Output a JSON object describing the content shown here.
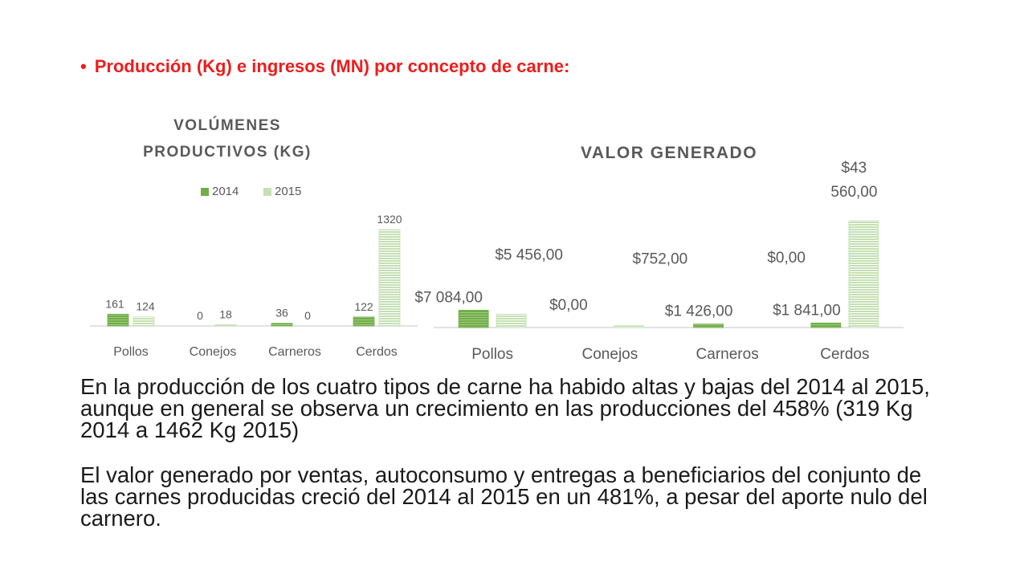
{
  "heading": "Producción (Kg) e ingresos (MN) por concepto de carne:",
  "paragraphs": [
    "En la producción de los cuatro tipos de carne ha habido altas y bajas del 2014 al 2015, aunque en general se observa un crecimiento en las producciones del 458% (319 Kg 2014 a 1462 Kg 2015)",
    "El valor generado por ventas, autoconsumo y entregas a beneficiarios del conjunto de las carnes producidas creció del 2014 al 2015 en un 481%, a pesar del aporte nulo del carnero."
  ],
  "colors": {
    "heading": "#ee1c1c",
    "series_2014": "#70ad47",
    "series_2015": "#c5e0b4",
    "chart_title": "#595959",
    "axis_text": "#595959"
  },
  "chart_data": [
    {
      "type": "bar",
      "title_lines": [
        "VOLÚMENES",
        "PRODUCTIVOS (KG)"
      ],
      "categories": [
        "Pollos",
        "Conejos",
        "Carneros",
        "Cerdos"
      ],
      "series": [
        {
          "name": "2014",
          "values": [
            161,
            0,
            36,
            122
          ]
        },
        {
          "name": "2015",
          "values": [
            124,
            18,
            0,
            1320
          ]
        }
      ],
      "data_labels": [
        [
          "161",
          "0",
          "36",
          "122"
        ],
        [
          "124",
          "18",
          "0",
          "1320"
        ]
      ],
      "legend": "top",
      "grid": false,
      "ylim": [
        0,
        1320
      ]
    },
    {
      "type": "bar",
      "title_lines": [
        "VALOR GENERADO"
      ],
      "categories": [
        "Pollos",
        "Conejos",
        "Carneros",
        "Cerdos"
      ],
      "series": [
        {
          "name": "2014",
          "values": [
            7084,
            0,
            1426,
            1841
          ]
        },
        {
          "name": "2015",
          "values": [
            5456,
            752,
            0,
            43560
          ]
        }
      ],
      "data_labels": [
        [
          [
            "$7 084,00"
          ],
          [
            "$0,00"
          ],
          [
            "$1 426,00"
          ],
          [
            "$1 841,00"
          ]
        ],
        [
          [
            "$5 456,00"
          ],
          [
            "$752,00"
          ],
          [
            "$0,00"
          ],
          [
            "$43",
            "560,00"
          ]
        ]
      ],
      "legend": "none",
      "grid": false,
      "ylim": [
        0,
        43560
      ]
    }
  ]
}
